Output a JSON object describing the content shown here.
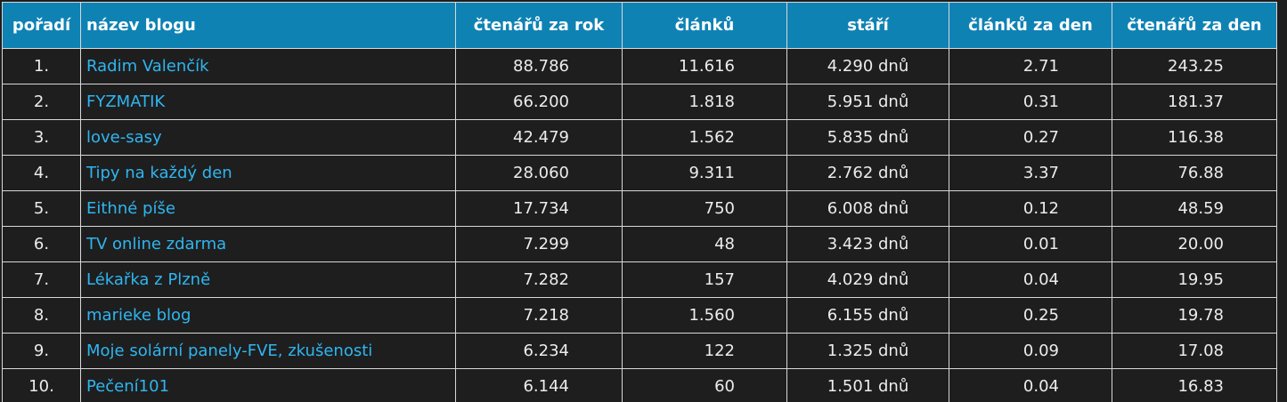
{
  "table": {
    "headers": {
      "rank": "pořadí",
      "name": "název blogu",
      "readers_year": "čtenářů za rok",
      "articles": "článků",
      "age": "stáří",
      "articles_day": "článků za den",
      "readers_day": "čtenářů za den"
    },
    "rows": [
      {
        "rank": "1.",
        "name": "Radim Valenčík",
        "readers_year": "88.786",
        "articles": "11.616",
        "age": "4.290 dnů",
        "articles_day": "2.71",
        "readers_day": "243.25"
      },
      {
        "rank": "2.",
        "name": "FYZMATIK",
        "readers_year": "66.200",
        "articles": "1.818",
        "age": "5.951 dnů",
        "articles_day": "0.31",
        "readers_day": "181.37"
      },
      {
        "rank": "3.",
        "name": "love-sasy",
        "readers_year": "42.479",
        "articles": "1.562",
        "age": "5.835 dnů",
        "articles_day": "0.27",
        "readers_day": "116.38"
      },
      {
        "rank": "4.",
        "name": "Tipy na každý den",
        "readers_year": "28.060",
        "articles": "9.311",
        "age": "2.762 dnů",
        "articles_day": "3.37",
        "readers_day": "76.88"
      },
      {
        "rank": "5.",
        "name": "Eithné píše",
        "readers_year": "17.734",
        "articles": "750",
        "age": "6.008 dnů",
        "articles_day": "0.12",
        "readers_day": "48.59"
      },
      {
        "rank": "6.",
        "name": "TV online zdarma",
        "readers_year": "7.299",
        "articles": "48",
        "age": "3.423 dnů",
        "articles_day": "0.01",
        "readers_day": "20.00"
      },
      {
        "rank": "7.",
        "name": "Lékařka z Plzně",
        "readers_year": "7.282",
        "articles": "157",
        "age": "4.029 dnů",
        "articles_day": "0.04",
        "readers_day": "19.95"
      },
      {
        "rank": "8.",
        "name": "marieke blog",
        "readers_year": "7.218",
        "articles": "1.560",
        "age": "6.155 dnů",
        "articles_day": "0.25",
        "readers_day": "19.78"
      },
      {
        "rank": "9.",
        "name": "Moje solární panely-FVE, zkušenosti",
        "readers_year": "6.234",
        "articles": "122",
        "age": "1.325 dnů",
        "articles_day": "0.09",
        "readers_day": "17.08"
      },
      {
        "rank": "10.",
        "name": "Pečení101",
        "readers_year": "6.144",
        "articles": "60",
        "age": "1.501 dnů",
        "articles_day": "0.04",
        "readers_day": "16.83"
      }
    ]
  },
  "colors": {
    "header_bg": "#0f82b4",
    "page_bg": "#1e1e1f",
    "link": "#2fb6ef",
    "text": "#ececec"
  }
}
